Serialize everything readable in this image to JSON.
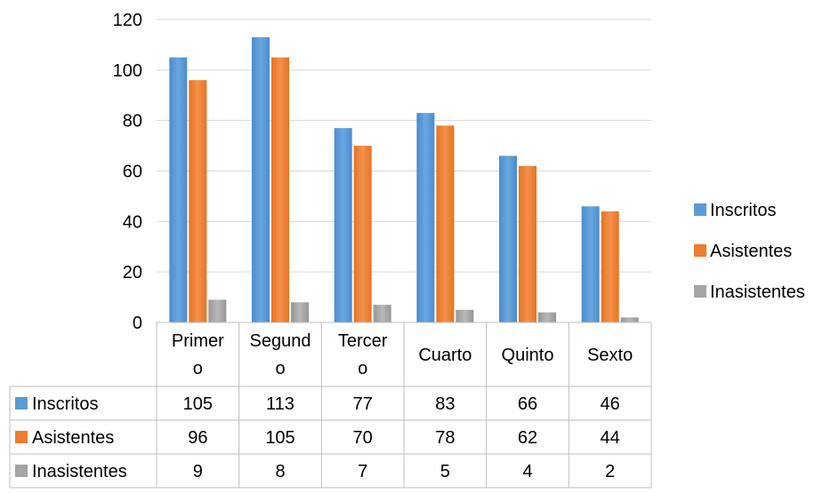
{
  "chart_data": {
    "type": "bar",
    "categories": [
      "Primer\no",
      "Segund\no",
      "Tercer\no",
      "Cuarto",
      "Quinto",
      "Sexto"
    ],
    "series": [
      {
        "name": "Inscritos",
        "values": [
          105,
          113,
          77,
          83,
          66,
          46
        ],
        "color": "#5B9BD5"
      },
      {
        "name": "Asistentes",
        "values": [
          96,
          105,
          70,
          78,
          62,
          44
        ],
        "color": "#ED7D31"
      },
      {
        "name": "Inasistentes",
        "values": [
          9,
          8,
          7,
          5,
          4,
          2
        ],
        "color": "#A5A5A5"
      }
    ],
    "ylim": [
      0,
      120
    ],
    "yticks": [
      0,
      20,
      40,
      60,
      80,
      100,
      120
    ],
    "grid": true,
    "legend_position": "right",
    "data_table": true
  }
}
